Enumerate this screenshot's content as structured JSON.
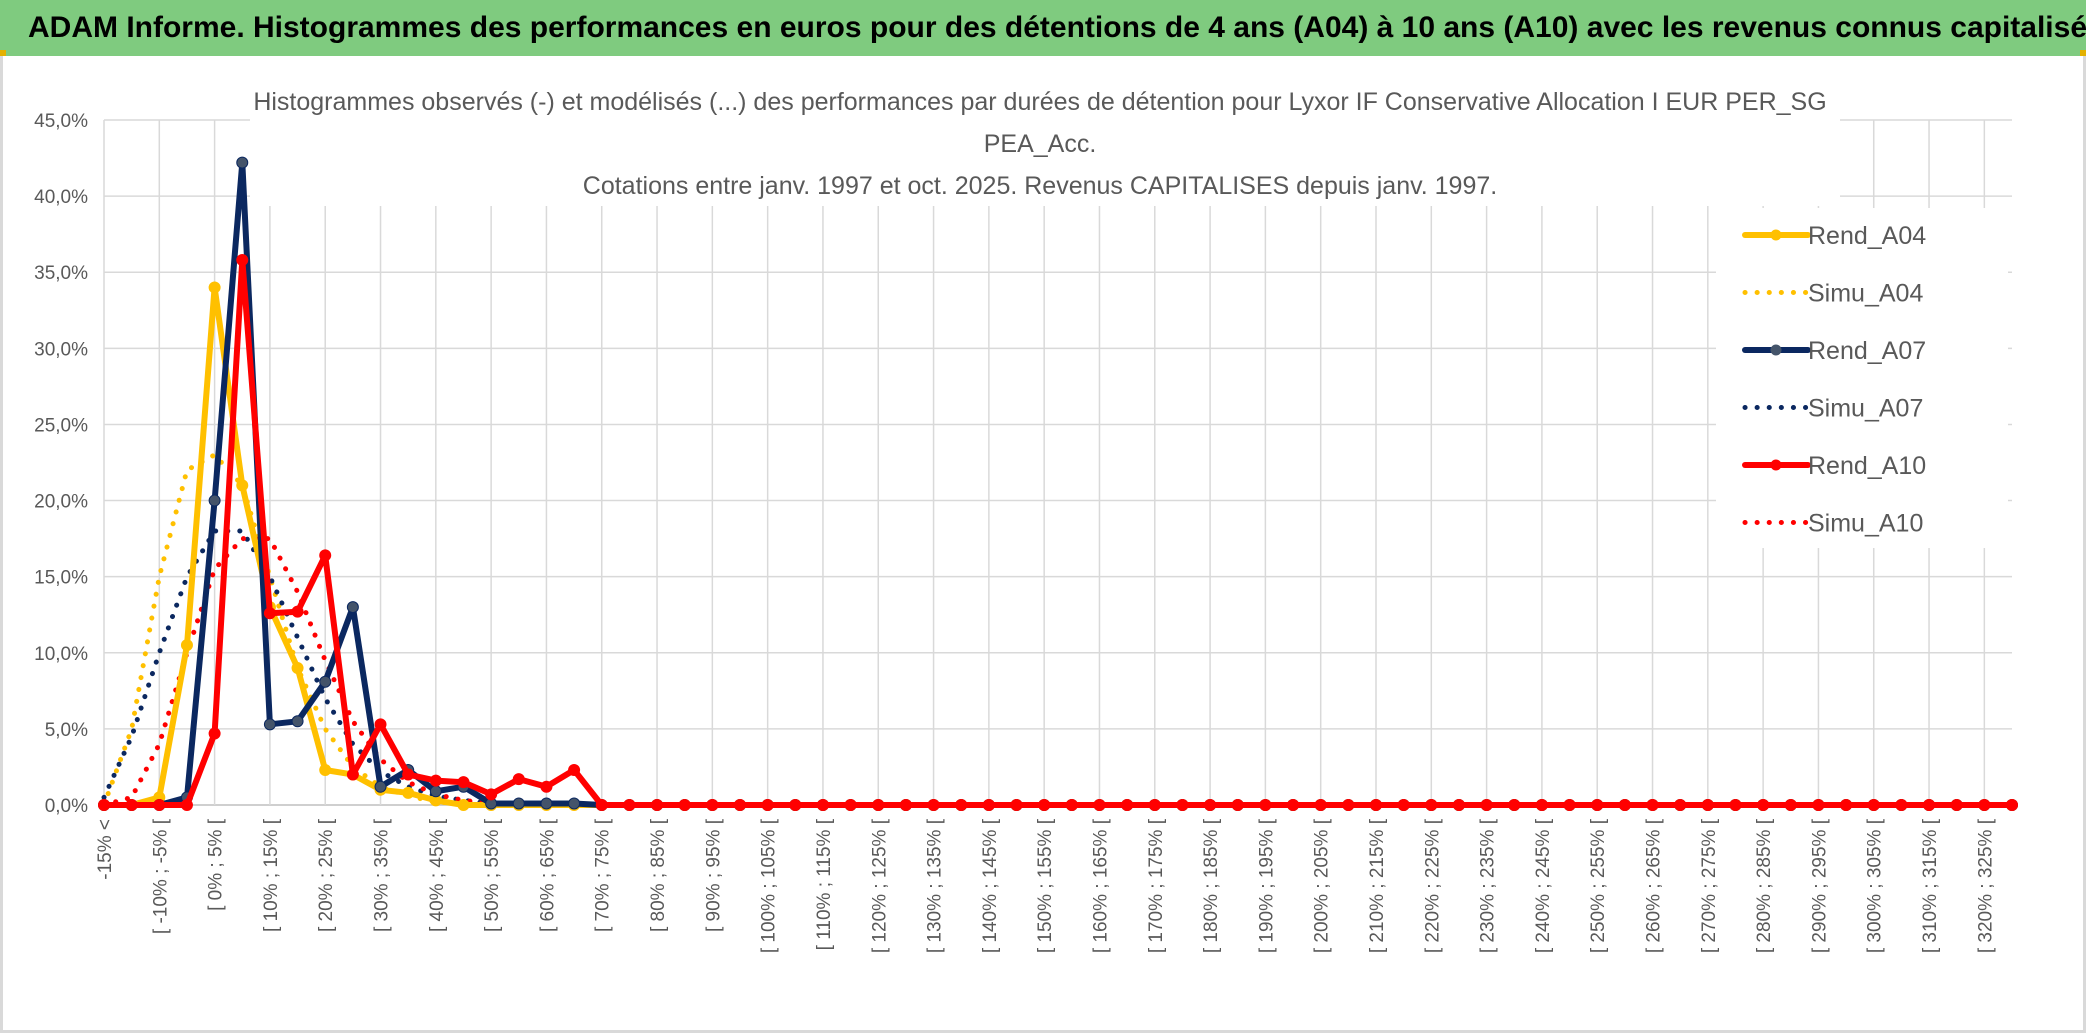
{
  "header": {
    "title": "ADAM Informe. Histogrammes des performances en euros pour des détentions de 4 ans (A04) à 10 ans (A10) avec les revenus connus capitalisés"
  },
  "chart_data": {
    "type": "line",
    "title_lines": [
      "Histogrammes observés (-) et modélisés (...) des performances par durées de détention pour Lyxor IF Conservative Allocation I EUR PER_SG",
      "PEA_Acc.",
      "Cotations entre janv. 1997 et oct. 2025. Revenus CAPITALISES depuis janv. 1997."
    ],
    "ylim": [
      0,
      45
    ],
    "yticks": [
      "0,0%",
      "5,0%",
      "10,0%",
      "15,0%",
      "20,0%",
      "25,0%",
      "30,0%",
      "35,0%",
      "40,0%",
      "45,0%"
    ],
    "grid": true,
    "legend_position": "right",
    "categories": [
      "-15% <",
      "[ -15% ; -10% [",
      "[ -10% ; -5% [",
      "[ -5% ; 0% [",
      "[ 0% ; 5% [",
      "[ 5% ; 10% [",
      "[ 10% ; 15% [",
      "[ 15% ; 20% [",
      "[ 20% ; 25% [",
      "[ 25% ; 30% [",
      "[ 30% ; 35% [",
      "[ 35% ; 40% [",
      "[ 40% ; 45% [",
      "[ 45% ; 50% [",
      "[ 50% ; 55% [",
      "[ 55% ; 60% [",
      "[ 60% ; 65% [",
      "[ 65% ; 70% [",
      "[ 70% ; 75% [",
      "[ 75% ; 80% [",
      "[ 80% ; 85% [",
      "[ 85% ; 90% [",
      "[ 90% ; 95% [",
      "[ 95% ; 100% [",
      "[ 100% ; 105% [",
      "[ 105% ; 110% [",
      "[ 110% ; 115% [",
      "[ 115% ; 120% [",
      "[ 120% ; 125% [",
      "[ 125% ; 130% [",
      "[ 130% ; 135% [",
      "[ 135% ; 140% [",
      "[ 140% ; 145% [",
      "[ 145% ; 150% [",
      "[ 150% ; 155% [",
      "[ 155% ; 160% [",
      "[ 160% ; 165% [",
      "[ 165% ; 170% [",
      "[ 170% ; 175% [",
      "[ 175% ; 180% [",
      "[ 180% ; 185% [",
      "[ 185% ; 190% [",
      "[ 190% ; 195% [",
      "[ 195% ; 200% [",
      "[ 200% ; 205% [",
      "[ 205% ; 210% [",
      "[ 210% ; 215% [",
      "[ 215% ; 220% [",
      "[ 220% ; 225% [",
      "[ 225% ; 230% [",
      "[ 230% ; 235% [",
      "[ 235% ; 240% [",
      "[ 240% ; 245% [",
      "[ 245% ; 250% [",
      "[ 250% ; 255% [",
      "[ 255% ; 260% [",
      "[ 260% ; 265% [",
      "[ 265% ; 270% [",
      "[ 270% ; 275% [",
      "[ 275% ; 280% [",
      "[ 280% ; 285% [",
      "[ 285% ; 290% [",
      "[ 290% ; 295% [",
      "[ 295% ; 300% [",
      "[ 300% ; 305% [",
      "[ 305% ; 310% [",
      "[ 310% ; 315% [",
      "[ 315% ; 320% [",
      "[ 320% ; 325% [",
      "[ 325% ; 330% ["
    ],
    "shown_tick_labels": [
      "-15% <",
      "[ -10% ; -5% [",
      "[ 0% ; 5% [",
      "[ 10% ; 15% [",
      "[ 20% ; 25% [",
      "[ 30% ; 35% [",
      "[ 40% ; 45% [",
      "[ 50% ; 55% [",
      "[ 60% ; 65% [",
      "[ 70% ; 75% [",
      "[ 80% ; 85% [",
      "[ 90% ; 95% [",
      "[ 100% ; 105% [",
      "[ 110% ; 115% [",
      "[ 120% ; 125% [",
      "[ 130% ; 135% [",
      "[ 140% ; 145% [",
      "[ 150% ; 155% [",
      "[ 160% ; 165% [",
      "[ 170% ; 175% [",
      "[ 180% ; 185% [",
      "[ 190% ; 195% [",
      "[ 200% ; 205% [",
      "[ 210% ; 215% [",
      "[ 220% ; 225% [",
      "[ 230% ; 235% [",
      "[ 240% ; 245% [",
      "[ 250% ; 255% [",
      "[ 260% ; 265% [",
      "[ 270% ; 275% [",
      "[ 280% ; 285% [",
      "[ 290% ; 295% [",
      "[ 300% ; 305% [",
      "[ 310% ; 315% [",
      "[ 320% ; 325% ["
    ],
    "series": [
      {
        "name": "Rend_A04",
        "color": "#ffc000",
        "style": "solid",
        "markers": true,
        "values": [
          0,
          0,
          0.5,
          10.5,
          34.0,
          21.0,
          13.0,
          9.0,
          2.3,
          2.0,
          1.0,
          0.8,
          0.3,
          0,
          0,
          0,
          0,
          0,
          0,
          0,
          0,
          0,
          0,
          0,
          0,
          0,
          0,
          0,
          0,
          0,
          0,
          0,
          0,
          0,
          0,
          0,
          0,
          0,
          0,
          0,
          0,
          0,
          0,
          0,
          0,
          0,
          0,
          0,
          0,
          0,
          0,
          0,
          0,
          0,
          0,
          0,
          0,
          0,
          0,
          0,
          0,
          0,
          0,
          0,
          0,
          0,
          0,
          0,
          0,
          0
        ]
      },
      {
        "name": "Simu_A04",
        "color": "#ffc000",
        "style": "dotted",
        "markers": false,
        "values": [
          0,
          5.0,
          15.0,
          22.0,
          23.0,
          21.0,
          15.0,
          9.0,
          5.0,
          2.5,
          1.2,
          0.6,
          0.2,
          0.1,
          0,
          0,
          0,
          0,
          0,
          0,
          0,
          0,
          0,
          0,
          0,
          0,
          0,
          0,
          0,
          0,
          0,
          0,
          0,
          0,
          0,
          0,
          0,
          0,
          0,
          0,
          0,
          0,
          0,
          0,
          0,
          0,
          0,
          0,
          0,
          0,
          0,
          0,
          0,
          0,
          0,
          0,
          0,
          0,
          0,
          0,
          0,
          0,
          0,
          0,
          0,
          0,
          0,
          0,
          0,
          0
        ]
      },
      {
        "name": "Rend_A07",
        "color": "#0b2860",
        "style": "solid",
        "markers": true,
        "values": [
          0,
          0,
          0,
          0.5,
          20.0,
          42.2,
          5.3,
          5.5,
          8.1,
          13.0,
          1.2,
          2.3,
          0.9,
          1.2,
          0.1,
          0.1,
          0.1,
          0.1,
          0,
          0,
          0,
          0,
          0,
          0,
          0,
          0,
          0,
          0,
          0,
          0,
          0,
          0,
          0,
          0,
          0,
          0,
          0,
          0,
          0,
          0,
          0,
          0,
          0,
          0,
          0,
          0,
          0,
          0,
          0,
          0,
          0,
          0,
          0,
          0,
          0,
          0,
          0,
          0,
          0,
          0,
          0,
          0,
          0,
          0,
          0,
          0,
          0,
          0,
          0,
          0
        ]
      },
      {
        "name": "Simu_A07",
        "color": "#0b2860",
        "style": "dotted",
        "markers": false,
        "values": [
          0.5,
          4.5,
          10.0,
          15.0,
          18.0,
          18.0,
          15.0,
          11.0,
          7.0,
          4.0,
          2.2,
          1.2,
          0.6,
          0.3,
          0.1,
          0.1,
          0,
          0,
          0,
          0,
          0,
          0,
          0,
          0,
          0,
          0,
          0,
          0,
          0,
          0,
          0,
          0,
          0,
          0,
          0,
          0,
          0,
          0,
          0,
          0,
          0,
          0,
          0,
          0,
          0,
          0,
          0,
          0,
          0,
          0,
          0,
          0,
          0,
          0,
          0,
          0,
          0,
          0,
          0,
          0,
          0,
          0,
          0,
          0,
          0,
          0,
          0,
          0,
          0,
          0
        ]
      },
      {
        "name": "Rend_A10",
        "color": "#ff0000",
        "style": "solid",
        "markers": true,
        "values": [
          0,
          0,
          0,
          0,
          4.7,
          35.8,
          12.6,
          12.7,
          16.4,
          2.0,
          5.3,
          2.0,
          1.6,
          1.5,
          0.7,
          1.7,
          1.2,
          2.3,
          0,
          0,
          0,
          0,
          0,
          0,
          0,
          0,
          0,
          0,
          0,
          0,
          0,
          0,
          0,
          0,
          0,
          0,
          0,
          0,
          0,
          0,
          0,
          0,
          0,
          0,
          0,
          0,
          0,
          0,
          0,
          0,
          0,
          0,
          0,
          0,
          0,
          0,
          0,
          0,
          0,
          0,
          0,
          0,
          0,
          0,
          0,
          0,
          0,
          0,
          0,
          0
        ]
      },
      {
        "name": "Simu_A10",
        "color": "#ff0000",
        "style": "dotted",
        "markers": false,
        "values": [
          0,
          0.5,
          4.0,
          10.0,
          15.5,
          17.5,
          17.5,
          14.0,
          9.5,
          5.5,
          3.0,
          1.5,
          0.7,
          0.3,
          0.1,
          0,
          0,
          0,
          0,
          0,
          0,
          0,
          0,
          0,
          0,
          0,
          0,
          0,
          0,
          0,
          0,
          0,
          0,
          0,
          0,
          0,
          0,
          0,
          0,
          0,
          0,
          0,
          0,
          0,
          0,
          0,
          0,
          0,
          0,
          0,
          0,
          0,
          0,
          0,
          0,
          0,
          0,
          0,
          0,
          0,
          0,
          0,
          0,
          0,
          0,
          0,
          0,
          0,
          0,
          0
        ]
      }
    ]
  }
}
